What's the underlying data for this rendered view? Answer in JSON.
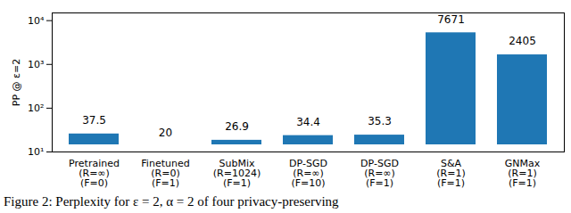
{
  "chart_data": {
    "type": "bar",
    "categories": [
      "Pretrained\n(R=∞)\n(F=0)",
      "Finetuned\n(R=0)\n(F=1)",
      "SubMix\n(R=1024)\n(F=1)",
      "DP-SGD\n(R=∞)\n(F=10)",
      "DP-SGD\n(R=∞)\n(F=1)",
      "S&A\n(R=1)\n(F=1)",
      "GNMax\n(R=1)\n(F=1)"
    ],
    "values": [
      37.5,
      20,
      26.9,
      34.4,
      35.3,
      7671,
      2405
    ],
    "color": "#1f77b4",
    "y_label": "PP @ ε=2",
    "log": "y",
    "ylim": [
      10,
      15000
    ],
    "yticks": [
      {
        "value": 10,
        "label": "10¹"
      },
      {
        "value": 100,
        "label": "10²"
      },
      {
        "value": 1000,
        "label": "10³"
      },
      {
        "value": 10000,
        "label": "10⁴"
      }
    ],
    "data_labels": true,
    "caption": "Figure 2: Perplexity for ε = 2, α = 2 of four privacy-preserving"
  }
}
